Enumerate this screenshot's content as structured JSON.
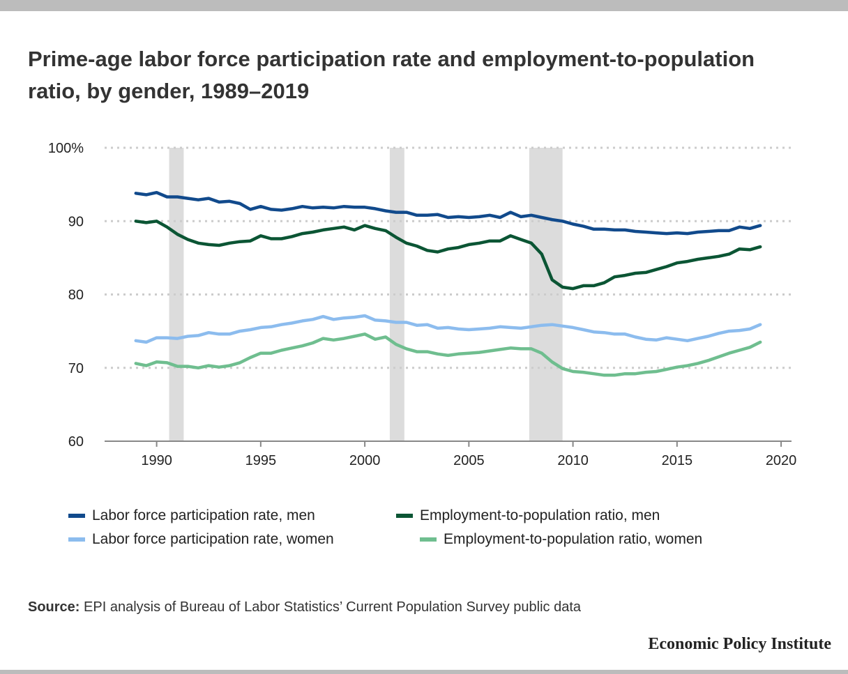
{
  "title": "Prime-age labor force participation rate and employment-to-population ratio, by gender, 1989–2019",
  "source_label": "Source:",
  "source_text": "EPI analysis of Bureau of Labor Statistics’ Current Population Survey public data",
  "brand": "Economic Policy Institute",
  "chart_data": {
    "type": "line",
    "title": "Prime-age labor force participation rate and employment-to-population ratio, by gender, 1989–2019",
    "xlabel": "",
    "ylabel": "",
    "xlim": [
      1987.5,
      2020.5
    ],
    "ylim": [
      60,
      100
    ],
    "x_ticks": [
      1990,
      1995,
      2000,
      2005,
      2010,
      2015,
      2020
    ],
    "x_tick_labels": [
      "1990",
      "1995",
      "2000",
      "2005",
      "2010",
      "2015",
      "2020"
    ],
    "y_ticks": [
      60,
      70,
      80,
      90,
      100
    ],
    "y_tick_labels": [
      "60",
      "70",
      "80",
      "90",
      "100%"
    ],
    "grid": "horizontal dotted",
    "legend_position": "bottom",
    "recessions": [
      [
        1990.6,
        1991.3
      ],
      [
        2001.2,
        2001.9
      ],
      [
        2007.9,
        2009.5
      ]
    ],
    "series": [
      {
        "name": "Labor force participation rate, men",
        "color": "#114a8c",
        "x": [
          1989,
          1989.5,
          1990,
          1990.5,
          1991,
          1991.5,
          1992,
          1992.5,
          1993,
          1993.5,
          1994,
          1994.5,
          1995,
          1995.5,
          1996,
          1996.5,
          1997,
          1997.5,
          1998,
          1998.5,
          1999,
          1999.5,
          2000,
          2000.5,
          2001,
          2001.5,
          2002,
          2002.5,
          2003,
          2003.5,
          2004,
          2004.5,
          2005,
          2005.5,
          2006,
          2006.5,
          2007,
          2007.5,
          2008,
          2008.5,
          2009,
          2009.5,
          2010,
          2010.5,
          2011,
          2011.5,
          2012,
          2012.5,
          2013,
          2013.5,
          2014,
          2014.5,
          2015,
          2015.5,
          2016,
          2016.5,
          2017,
          2017.5,
          2018,
          2018.5,
          2019
        ],
        "values": [
          93.8,
          93.6,
          93.9,
          93.3,
          93.3,
          93.1,
          92.9,
          93.1,
          92.6,
          92.7,
          92.4,
          91.6,
          92.0,
          91.6,
          91.5,
          91.7,
          92.0,
          91.8,
          91.9,
          91.8,
          92.0,
          91.9,
          91.9,
          91.7,
          91.4,
          91.2,
          91.2,
          90.8,
          90.8,
          90.9,
          90.5,
          90.6,
          90.5,
          90.6,
          90.8,
          90.5,
          91.2,
          90.6,
          90.8,
          90.5,
          90.2,
          90.0,
          89.6,
          89.3,
          88.9,
          88.9,
          88.8,
          88.8,
          88.6,
          88.5,
          88.4,
          88.3,
          88.4,
          88.3,
          88.5,
          88.6,
          88.7,
          88.7,
          89.2,
          89.0,
          89.4
        ]
      },
      {
        "name": "Employment-to-population ratio, men",
        "color": "#0b5534",
        "x": [
          1989,
          1989.5,
          1990,
          1990.5,
          1991,
          1991.5,
          1992,
          1992.5,
          1993,
          1993.5,
          1994,
          1994.5,
          1995,
          1995.5,
          1996,
          1996.5,
          1997,
          1997.5,
          1998,
          1998.5,
          1999,
          1999.5,
          2000,
          2000.5,
          2001,
          2001.5,
          2002,
          2002.5,
          2003,
          2003.5,
          2004,
          2004.5,
          2005,
          2005.5,
          2006,
          2006.5,
          2007,
          2007.5,
          2008,
          2008.5,
          2009,
          2009.5,
          2010,
          2010.5,
          2011,
          2011.5,
          2012,
          2012.5,
          2013,
          2013.5,
          2014,
          2014.5,
          2015,
          2015.5,
          2016,
          2016.5,
          2017,
          2017.5,
          2018,
          2018.5,
          2019
        ],
        "values": [
          90.0,
          89.8,
          90.0,
          89.2,
          88.2,
          87.5,
          87.0,
          86.8,
          86.7,
          87.0,
          87.2,
          87.3,
          88.0,
          87.6,
          87.6,
          87.9,
          88.3,
          88.5,
          88.8,
          89.0,
          89.2,
          88.8,
          89.4,
          89.0,
          88.7,
          87.8,
          87.0,
          86.6,
          86.0,
          85.8,
          86.2,
          86.4,
          86.8,
          87.0,
          87.3,
          87.3,
          88.0,
          87.5,
          87.0,
          85.5,
          82.0,
          81.0,
          80.8,
          81.2,
          81.2,
          81.6,
          82.4,
          82.6,
          82.9,
          83.0,
          83.4,
          83.8,
          84.3,
          84.5,
          84.8,
          85.0,
          85.2,
          85.5,
          86.2,
          86.1,
          86.5
        ]
      },
      {
        "name": "Labor force participation rate, women",
        "color": "#8cbcee",
        "x": [
          1989,
          1989.5,
          1990,
          1990.5,
          1991,
          1991.5,
          1992,
          1992.5,
          1993,
          1993.5,
          1994,
          1994.5,
          1995,
          1995.5,
          1996,
          1996.5,
          1997,
          1997.5,
          1998,
          1998.5,
          1999,
          1999.5,
          2000,
          2000.5,
          2001,
          2001.5,
          2002,
          2002.5,
          2003,
          2003.5,
          2004,
          2004.5,
          2005,
          2005.5,
          2006,
          2006.5,
          2007,
          2007.5,
          2008,
          2008.5,
          2009,
          2009.5,
          2010,
          2010.5,
          2011,
          2011.5,
          2012,
          2012.5,
          2013,
          2013.5,
          2014,
          2014.5,
          2015,
          2015.5,
          2016,
          2016.5,
          2017,
          2017.5,
          2018,
          2018.5,
          2019
        ],
        "values": [
          73.7,
          73.5,
          74.1,
          74.1,
          74.0,
          74.3,
          74.4,
          74.8,
          74.6,
          74.6,
          75.0,
          75.2,
          75.5,
          75.6,
          75.9,
          76.1,
          76.4,
          76.6,
          77.0,
          76.6,
          76.8,
          76.9,
          77.1,
          76.5,
          76.4,
          76.2,
          76.2,
          75.8,
          75.9,
          75.4,
          75.5,
          75.3,
          75.2,
          75.3,
          75.4,
          75.6,
          75.5,
          75.4,
          75.6,
          75.8,
          75.9,
          75.7,
          75.5,
          75.2,
          74.9,
          74.8,
          74.6,
          74.6,
          74.2,
          73.9,
          73.8,
          74.1,
          73.9,
          73.7,
          74.0,
          74.3,
          74.7,
          75.0,
          75.1,
          75.3,
          75.9
        ]
      },
      {
        "name": "Employment-to-population ratio, women",
        "color": "#6fbe8f",
        "x": [
          1989,
          1989.5,
          1990,
          1990.5,
          1991,
          1991.5,
          1992,
          1992.5,
          1993,
          1993.5,
          1994,
          1994.5,
          1995,
          1995.5,
          1996,
          1996.5,
          1997,
          1997.5,
          1998,
          1998.5,
          1999,
          1999.5,
          2000,
          2000.5,
          2001,
          2001.5,
          2002,
          2002.5,
          2003,
          2003.5,
          2004,
          2004.5,
          2005,
          2005.5,
          2006,
          2006.5,
          2007,
          2007.5,
          2008,
          2008.5,
          2009,
          2009.5,
          2010,
          2010.5,
          2011,
          2011.5,
          2012,
          2012.5,
          2013,
          2013.5,
          2014,
          2014.5,
          2015,
          2015.5,
          2016,
          2016.5,
          2017,
          2017.5,
          2018,
          2018.5,
          2019
        ],
        "values": [
          70.6,
          70.3,
          70.8,
          70.7,
          70.2,
          70.2,
          70.0,
          70.3,
          70.1,
          70.3,
          70.7,
          71.4,
          72.0,
          72.0,
          72.4,
          72.7,
          73.0,
          73.4,
          74.0,
          73.8,
          74.0,
          74.3,
          74.6,
          73.9,
          74.2,
          73.2,
          72.6,
          72.2,
          72.2,
          71.9,
          71.7,
          71.9,
          72.0,
          72.1,
          72.3,
          72.5,
          72.7,
          72.6,
          72.6,
          72.0,
          70.8,
          69.9,
          69.5,
          69.4,
          69.2,
          69.0,
          69.0,
          69.2,
          69.2,
          69.4,
          69.5,
          69.8,
          70.1,
          70.3,
          70.6,
          71.0,
          71.5,
          72.0,
          72.4,
          72.8,
          73.5
        ]
      }
    ]
  }
}
